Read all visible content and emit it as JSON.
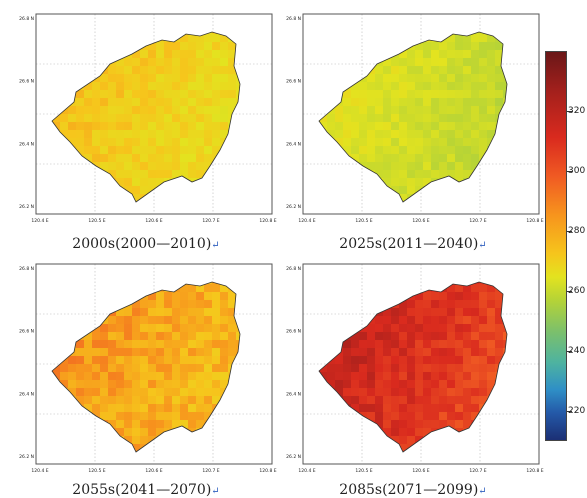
{
  "colorbar": {
    "ticks": [
      "320",
      "300",
      "280",
      "260",
      "240",
      "220"
    ],
    "min": 210,
    "max": 340,
    "colors": [
      "#1b2f74",
      "#2459a8",
      "#2f8fc6",
      "#4eb3a0",
      "#7cc06b",
      "#b5d337",
      "#e3e31f",
      "#f6c51c",
      "#f7941d",
      "#f05a23",
      "#d92a1e",
      "#a3201c",
      "#6a1718"
    ]
  },
  "panels": [
    {
      "id": "p2000s",
      "caption": "2000s(2000—2010)",
      "return_mark": "↵",
      "xticks": [
        "120.4 E",
        "120.5 E",
        "120.6 E",
        "120.7 E",
        "120.8 E"
      ],
      "yticks": [
        "26.8 N",
        "26.6 N",
        "26.4 N",
        "26.2 N"
      ],
      "mean_value": 283,
      "spread": 6
    },
    {
      "id": "p2025s",
      "caption": "2025s(2011—2040)",
      "return_mark": "↵",
      "xticks": [
        "120.4 E",
        "120.5 E",
        "120.6 E",
        "120.7 E",
        "120.8 E"
      ],
      "yticks": [
        "26.8 N",
        "26.6 N",
        "26.4 N",
        "26.2 N"
      ],
      "mean_value": 272,
      "spread": 5
    },
    {
      "id": "p2055s",
      "caption": "2055s(2041—2070)",
      "return_mark": "↵",
      "xticks": [
        "120.4 E",
        "120.5 E",
        "120.6 E",
        "120.7 E",
        "120.8 E"
      ],
      "yticks": [
        "26.8 N",
        "26.6 N",
        "26.4 N",
        "26.2 N"
      ],
      "mean_value": 293,
      "spread": 8
    },
    {
      "id": "p2085s",
      "caption": "2085s(2071—2099)",
      "return_mark": "↵",
      "xticks": [
        "120.4 E",
        "120.5 E",
        "120.6 E",
        "120.7 E",
        "120.8 E"
      ],
      "yticks": [
        "26.8 N",
        "26.6 N",
        "26.4 N",
        "26.2 N"
      ],
      "mean_value": 318,
      "spread": 6
    }
  ]
}
